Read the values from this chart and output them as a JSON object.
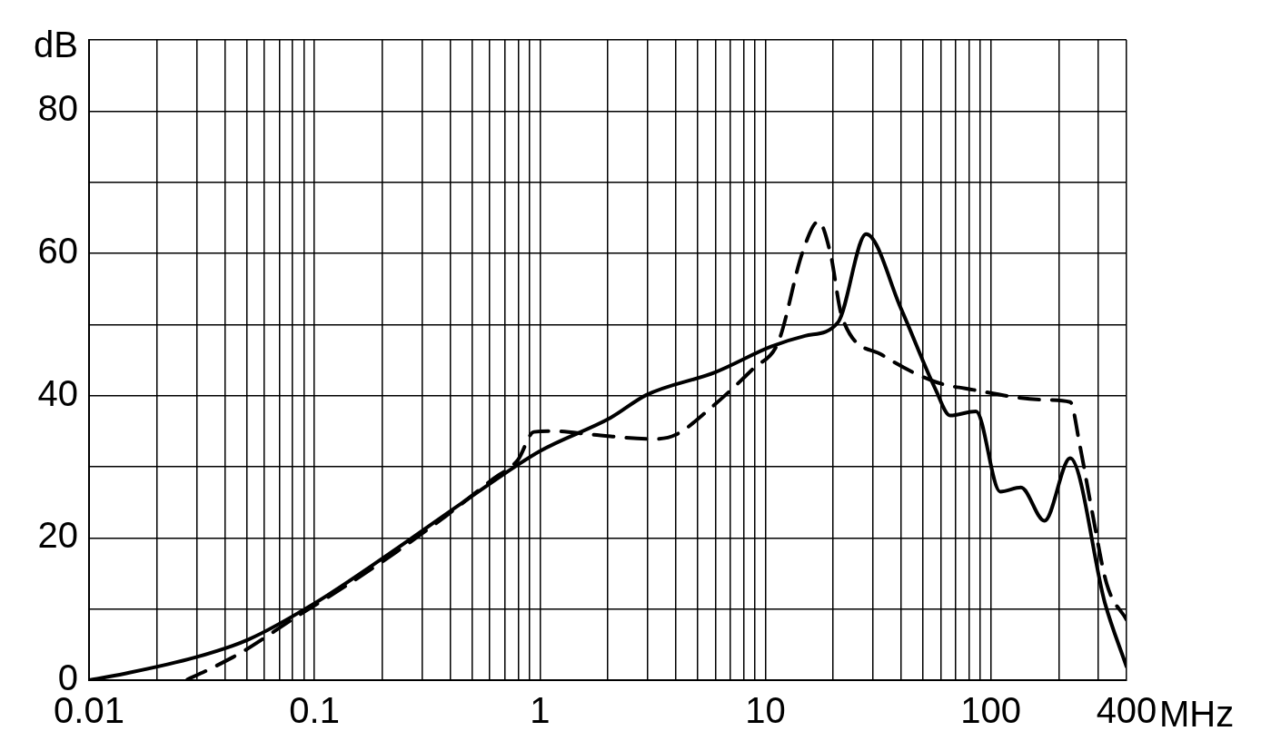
{
  "chart_data": {
    "type": "line",
    "xlabel": "MHz",
    "ylabel": "dB",
    "log": "x",
    "grid": true,
    "legend": false,
    "marker": "none",
    "xlim": [
      0.01,
      400
    ],
    "xticks": [
      0.01,
      {
        "value": 0.02,
        "label": null
      },
      {
        "value": 0.03,
        "label": null
      },
      {
        "value": 0.04,
        "label": null
      },
      {
        "value": 0.05,
        "label": null
      },
      {
        "value": 0.06,
        "label": null
      },
      {
        "value": 0.07,
        "label": null
      },
      {
        "value": 0.08,
        "label": null
      },
      {
        "value": 0.09,
        "label": null
      },
      0.1,
      {
        "value": 0.2,
        "label": null
      },
      {
        "value": 0.3,
        "label": null
      },
      {
        "value": 0.4,
        "label": null
      },
      {
        "value": 0.5,
        "label": null
      },
      {
        "value": 0.6,
        "label": null
      },
      {
        "value": 0.7,
        "label": null
      },
      {
        "value": 0.8,
        "label": null
      },
      {
        "value": 0.9,
        "label": null
      },
      1,
      {
        "value": 2,
        "label": null
      },
      {
        "value": 3,
        "label": null
      },
      {
        "value": 4,
        "label": null
      },
      {
        "value": 5,
        "label": null
      },
      {
        "value": 6,
        "label": null
      },
      {
        "value": 7,
        "label": null
      },
      {
        "value": 8,
        "label": null
      },
      {
        "value": 9,
        "label": null
      },
      10,
      {
        "value": 20,
        "label": null
      },
      {
        "value": 30,
        "label": null
      },
      {
        "value": 40,
        "label": null
      },
      {
        "value": 50,
        "label": null
      },
      {
        "value": 60,
        "label": null
      },
      {
        "value": 70,
        "label": null
      },
      {
        "value": 80,
        "label": null
      },
      {
        "value": 90,
        "label": null
      },
      100,
      {
        "value": 200,
        "label": null
      },
      {
        "value": 300,
        "label": null
      },
      400
    ],
    "ylim": [
      0,
      90
    ],
    "yticks": [
      0,
      {
        "value": 10,
        "label": null
      },
      20,
      {
        "value": 30,
        "label": null
      },
      40,
      {
        "value": 50,
        "label": null
      },
      60,
      {
        "value": 70,
        "label": null
      },
      80,
      {
        "value": 90,
        "label": null
      }
    ],
    "series": [
      {
        "color": "#000000",
        "line_style": "solid",
        "x": [
          0.01,
          0.0143,
          0.0296,
          0.0508,
          0.1,
          0.215,
          0.48,
          1,
          2.06,
          2.97,
          6,
          10.6,
          15,
          21,
          28,
          40,
          57,
          66,
          86,
          110,
          136,
          173,
          225,
          321,
          400
        ],
        "values": [
          0,
          0.9,
          3.2,
          5.7,
          10.8,
          17.8,
          25.5,
          32.2,
          36.9,
          40.1,
          43.3,
          46.9,
          48.4,
          50.3,
          62.7,
          52.2,
          40.8,
          37.2,
          37.8,
          26.5,
          27.1,
          22.4,
          31.2,
          10.8,
          1.9
        ]
      },
      {
        "color": "#000000",
        "line_style": "dashed",
        "x": [
          0.0273,
          0.033,
          0.048,
          0.082,
          0.137,
          0.23,
          0.38,
          0.62,
          0.8,
          0.94,
          1.15,
          1.73,
          3.17,
          4,
          5.6,
          8.9,
          11.4,
          14.6,
          17.2,
          19.4,
          21.9,
          33,
          56,
          84,
          176,
          225,
          248,
          281,
          327,
          400
        ],
        "values": [
          0.1,
          1.3,
          4,
          8.8,
          13.2,
          18,
          23,
          28.3,
          31,
          34.9,
          35,
          34.5,
          33.9,
          34.5,
          38,
          43.9,
          47.5,
          60.1,
          64.5,
          60.1,
          51,
          45.7,
          42,
          40.8,
          39.4,
          39.1,
          33.1,
          23.8,
          13.5,
          8.5
        ]
      }
    ]
  }
}
